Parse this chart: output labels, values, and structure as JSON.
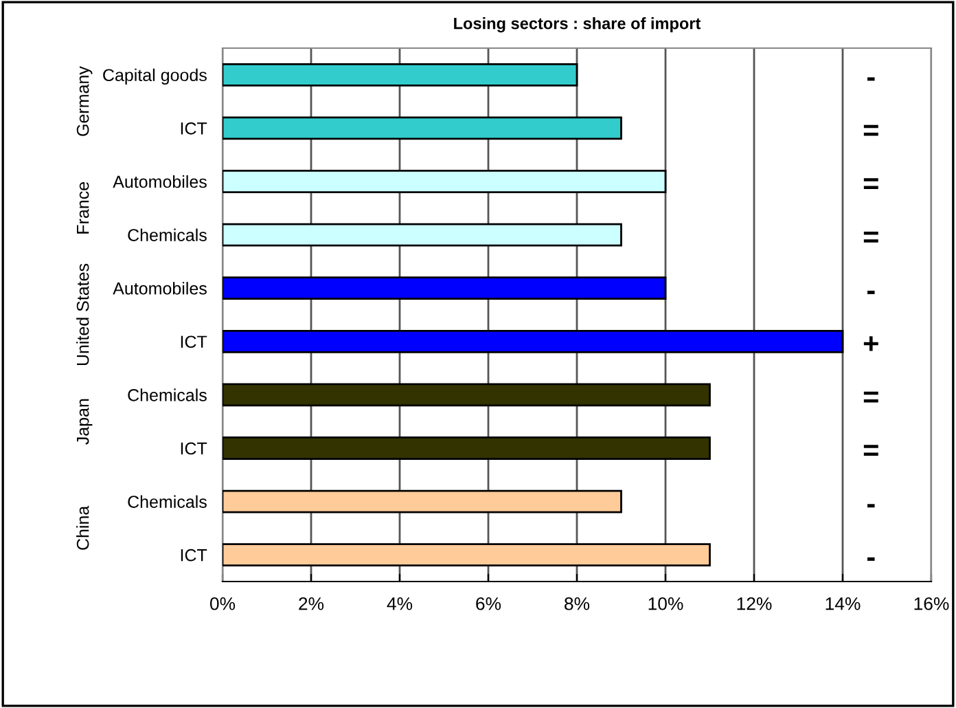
{
  "chart_data": {
    "type": "bar",
    "orientation": "horizontal",
    "title": "Losing sectors : share of import",
    "categories": [
      "Capital goods",
      "ICT",
      "Automobiles",
      "Chemicals",
      "Automobiles",
      "ICT",
      "Chemicals",
      "ICT",
      "Chemicals",
      "ICT"
    ],
    "values": [
      8,
      9,
      10,
      9,
      10,
      14,
      11,
      11,
      9,
      11
    ],
    "colors": [
      "#33cccc",
      "#33cccc",
      "#ccffff",
      "#ccffff",
      "#0000ff",
      "#0000ff",
      "#333300",
      "#333300",
      "#ffcc99",
      "#ffcc99"
    ],
    "xlim": [
      0,
      16
    ],
    "xticks": [
      {
        "value": 0,
        "label": "0%"
      },
      {
        "value": 2,
        "label": "2%"
      },
      {
        "value": 4,
        "label": "4%"
      },
      {
        "value": 6,
        "label": "6%"
      },
      {
        "value": 8,
        "label": "8%"
      },
      {
        "value": 10,
        "label": "10%"
      },
      {
        "value": 12,
        "label": "12%"
      },
      {
        "value": 14,
        "label": "14%"
      },
      {
        "value": 16,
        "label": "16%"
      }
    ],
    "grid": "x",
    "annotations": [
      "-",
      "=",
      "=",
      "=",
      "-",
      "+",
      "=",
      "=",
      "-",
      "-",
      "Germany",
      "France",
      "United States",
      "Japan",
      "China"
    ]
  }
}
